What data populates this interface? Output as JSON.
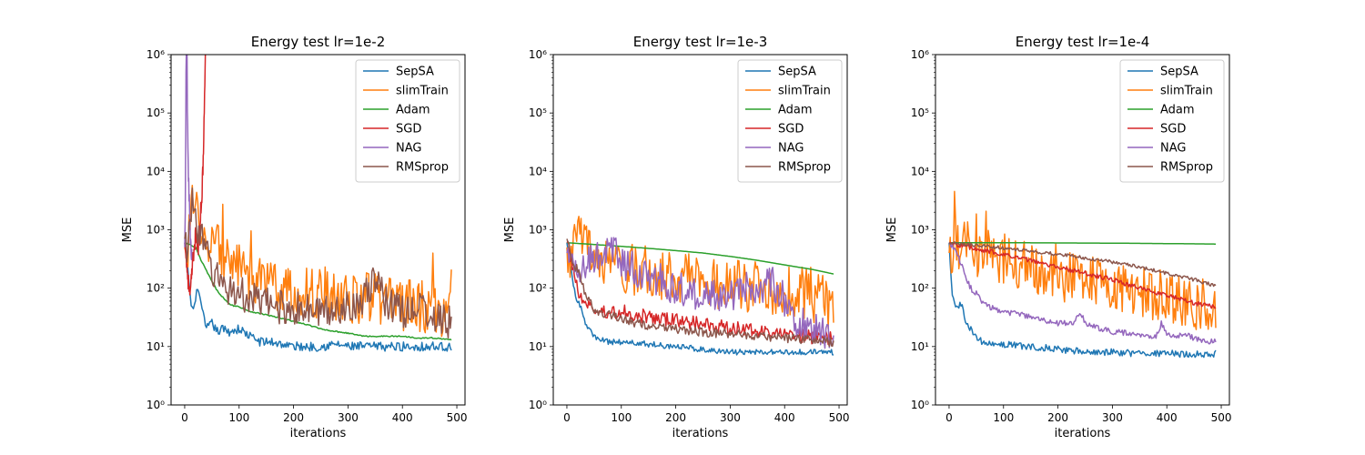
{
  "chart_data": [
    {
      "type": "line",
      "title": "Energy test lr=1e-2",
      "xlabel": "iterations",
      "ylabel": "MSE",
      "yscale": "log",
      "xlim": [
        -25,
        515
      ],
      "ylim": [
        1,
        1000000
      ],
      "xticks": [
        0,
        100,
        200,
        300,
        400,
        500
      ],
      "yticks": [
        1,
        10,
        100,
        1000,
        10000,
        100000,
        1000000
      ],
      "legend_position": "top-right",
      "series": [
        {
          "name": "SepSA",
          "color": "#1f77b4",
          "noise": 0.08,
          "x": [
            0,
            5,
            10,
            15,
            20,
            25,
            30,
            35,
            40,
            50,
            60,
            70,
            80,
            100,
            120,
            140,
            160,
            180,
            200,
            220,
            250,
            280,
            300,
            350,
            400,
            450,
            480,
            490
          ],
          "y": [
            600,
            300,
            70,
            40,
            60,
            120,
            50,
            30,
            20,
            25,
            18,
            20,
            18,
            20,
            15,
            12,
            12,
            11,
            10,
            10,
            10,
            11,
            10,
            10,
            10,
            10,
            10,
            10
          ]
        },
        {
          "name": "slimTrain",
          "color": "#ff7f0e",
          "noise": 0.45,
          "x": [
            0,
            5,
            10,
            15,
            20,
            25,
            30,
            40,
            50,
            60,
            70,
            80,
            90,
            100,
            120,
            150,
            180,
            200,
            230,
            260,
            300,
            330,
            360,
            400,
            430,
            460,
            480,
            487,
            490
          ],
          "y": [
            500,
            600,
            900,
            2000,
            2500,
            1500,
            1000,
            700,
            600,
            500,
            400,
            350,
            300,
            200,
            150,
            120,
            100,
            90,
            80,
            80,
            70,
            70,
            60,
            50,
            50,
            45,
            40,
            40,
            300
          ]
        },
        {
          "name": "Adam",
          "color": "#2ca02c",
          "noise": 0.01,
          "x": [
            0,
            20,
            30,
            40,
            50,
            60,
            70,
            80,
            90,
            100,
            120,
            150,
            180,
            200,
            230,
            250,
            280,
            300,
            330,
            350,
            380,
            400,
            430,
            460,
            490
          ],
          "y": [
            600,
            500,
            300,
            200,
            130,
            90,
            70,
            55,
            50,
            48,
            40,
            35,
            30,
            27,
            23,
            20,
            18,
            17,
            15,
            15,
            15,
            15,
            14,
            14,
            13
          ]
        },
        {
          "name": "SGD",
          "color": "#d62728",
          "noise": 0.15,
          "x": [
            0,
            3,
            6,
            10,
            15,
            20,
            25,
            28,
            31,
            34,
            37,
            39
          ],
          "y": [
            600,
            300,
            150,
            70,
            300,
            800,
            500,
            1500,
            3000,
            15000,
            300000,
            3000000
          ]
        },
        {
          "name": "NAG",
          "color": "#9467bd",
          "noise": 0.2,
          "x": [
            0,
            1,
            2,
            3,
            4,
            5,
            7,
            10,
            13
          ],
          "y": [
            500,
            2000,
            100000,
            1000000,
            3000000,
            100000,
            10000,
            800,
            300
          ]
        },
        {
          "name": "RMSprop",
          "color": "#8c564b",
          "noise": 0.3,
          "x": [
            0,
            5,
            10,
            15,
            20,
            25,
            30,
            40,
            50,
            60,
            70,
            80,
            100,
            130,
            160,
            200,
            230,
            260,
            300,
            340,
            350,
            370,
            400,
            430,
            460,
            490
          ],
          "y": [
            700,
            500,
            1500,
            3000,
            2000,
            1000,
            700,
            400,
            200,
            150,
            120,
            100,
            80,
            60,
            50,
            45,
            40,
            40,
            50,
            80,
            150,
            60,
            40,
            50,
            30,
            25
          ]
        }
      ]
    },
    {
      "type": "line",
      "title": "Energy test lr=1e-3",
      "xlabel": "iterations",
      "ylabel": "MSE",
      "yscale": "log",
      "xlim": [
        -25,
        515
      ],
      "ylim": [
        1,
        1000000
      ],
      "xticks": [
        0,
        100,
        200,
        300,
        400,
        500
      ],
      "yticks": [
        1,
        10,
        100,
        1000,
        10000,
        100000,
        1000000
      ],
      "legend_position": "top-right",
      "series": [
        {
          "name": "SepSA",
          "color": "#1f77b4",
          "noise": 0.05,
          "x": [
            0,
            5,
            10,
            15,
            20,
            25,
            30,
            40,
            50,
            60,
            80,
            100,
            150,
            200,
            250,
            300,
            350,
            400,
            450,
            490
          ],
          "y": [
            600,
            300,
            150,
            80,
            60,
            50,
            30,
            20,
            15,
            13,
            12,
            12,
            11,
            10,
            9,
            8,
            8,
            8,
            8,
            8
          ]
        },
        {
          "name": "slimTrain",
          "color": "#ff7f0e",
          "noise": 0.45,
          "x": [
            0,
            5,
            10,
            15,
            20,
            30,
            40,
            50,
            60,
            80,
            100,
            130,
            160,
            200,
            240,
            280,
            320,
            360,
            400,
            440,
            470,
            490
          ],
          "y": [
            500,
            400,
            400,
            500,
            800,
            600,
            400,
            350,
            300,
            250,
            220,
            200,
            180,
            150,
            130,
            120,
            110,
            100,
            90,
            80,
            60,
            50
          ]
        },
        {
          "name": "Adam",
          "color": "#2ca02c",
          "noise": 0,
          "x": [
            0,
            50,
            100,
            150,
            200,
            250,
            300,
            350,
            400,
            450,
            490
          ],
          "y": [
            600,
            560,
            520,
            480,
            440,
            400,
            350,
            300,
            250,
            210,
            175
          ]
        },
        {
          "name": "SGD",
          "color": "#d62728",
          "noise": 0.12,
          "x": [
            0,
            5,
            10,
            15,
            20,
            25,
            30,
            40,
            50,
            60,
            80,
            100,
            130,
            160,
            200,
            240,
            280,
            320,
            360,
            400,
            440,
            470,
            490
          ],
          "y": [
            600,
            400,
            250,
            150,
            100,
            70,
            60,
            50,
            45,
            40,
            38,
            40,
            35,
            30,
            28,
            25,
            22,
            20,
            18,
            16,
            15,
            14,
            14
          ]
        },
        {
          "name": "NAG",
          "color": "#9467bd",
          "noise": 0.3,
          "x": [
            0,
            10,
            20,
            30,
            40,
            50,
            60,
            70,
            80,
            100,
            130,
            160,
            200,
            250,
            300,
            340,
            380,
            400,
            420,
            440,
            460,
            480,
            490
          ],
          "y": [
            400,
            300,
            200,
            250,
            300,
            300,
            350,
            400,
            500,
            300,
            200,
            150,
            100,
            80,
            80,
            100,
            120,
            60,
            30,
            25,
            20,
            15,
            15
          ]
        },
        {
          "name": "RMSprop",
          "color": "#8c564b",
          "noise": 0.08,
          "x": [
            0,
            5,
            10,
            20,
            30,
            40,
            50,
            60,
            80,
            100,
            130,
            160,
            200,
            240,
            280,
            320,
            360,
            400,
            440,
            480,
            490
          ],
          "y": [
            700,
            500,
            300,
            200,
            100,
            60,
            45,
            40,
            35,
            30,
            25,
            22,
            20,
            18,
            17,
            16,
            15,
            14,
            13,
            12,
            12
          ]
        }
      ]
    },
    {
      "type": "line",
      "title": "Energy test lr=1e-4",
      "xlabel": "iterations",
      "ylabel": "MSE",
      "yscale": "log",
      "xlim": [
        -25,
        515
      ],
      "ylim": [
        1,
        1000000
      ],
      "xticks": [
        0,
        100,
        200,
        300,
        400,
        500
      ],
      "yticks": [
        1,
        10,
        100,
        1000,
        10000,
        100000,
        1000000
      ],
      "legend_position": "top-right",
      "series": [
        {
          "name": "SepSA",
          "color": "#1f77b4",
          "noise": 0.06,
          "x": [
            0,
            3,
            6,
            10,
            15,
            20,
            25,
            30,
            40,
            50,
            60,
            70,
            80,
            100,
            150,
            200,
            250,
            300,
            350,
            400,
            450,
            490
          ],
          "y": [
            600,
            200,
            80,
            60,
            40,
            50,
            45,
            30,
            20,
            15,
            12,
            11,
            11,
            11,
            10,
            9,
            8,
            8,
            7.5,
            7.5,
            7.5,
            7.5
          ]
        },
        {
          "name": "slimTrain",
          "color": "#ff7f0e",
          "noise": 0.45,
          "x": [
            0,
            10,
            20,
            30,
            40,
            50,
            70,
            100,
            130,
            160,
            200,
            250,
            300,
            350,
            400,
            450,
            490
          ],
          "y": [
            400,
            500,
            600,
            700,
            500,
            400,
            350,
            300,
            250,
            200,
            170,
            140,
            110,
            90,
            70,
            55,
            50
          ]
        },
        {
          "name": "Adam",
          "color": "#2ca02c",
          "noise": 0,
          "x": [
            0,
            100,
            200,
            300,
            400,
            490
          ],
          "y": [
            600,
            600,
            595,
            590,
            580,
            570
          ]
        },
        {
          "name": "SGD",
          "color": "#d62728",
          "noise": 0.04,
          "x": [
            0,
            30,
            60,
            100,
            150,
            200,
            250,
            300,
            350,
            400,
            450,
            490
          ],
          "y": [
            600,
            520,
            450,
            380,
            300,
            230,
            180,
            140,
            100,
            75,
            55,
            48
          ]
        },
        {
          "name": "NAG",
          "color": "#9467bd",
          "noise": 0.05,
          "x": [
            0,
            10,
            20,
            30,
            40,
            50,
            60,
            70,
            80,
            100,
            130,
            160,
            200,
            230,
            240,
            250,
            280,
            300,
            350,
            380,
            390,
            400,
            440,
            460,
            490
          ],
          "y": [
            600,
            500,
            300,
            150,
            100,
            80,
            60,
            50,
            45,
            40,
            35,
            30,
            25,
            25,
            40,
            25,
            20,
            18,
            16,
            15,
            25,
            16,
            15,
            13,
            12
          ]
        },
        {
          "name": "RMSprop",
          "color": "#8c564b",
          "noise": 0.03,
          "x": [
            0,
            50,
            100,
            150,
            200,
            250,
            300,
            350,
            400,
            450,
            490
          ],
          "y": [
            600,
            540,
            490,
            430,
            380,
            330,
            280,
            230,
            180,
            140,
            110
          ]
        }
      ]
    }
  ]
}
